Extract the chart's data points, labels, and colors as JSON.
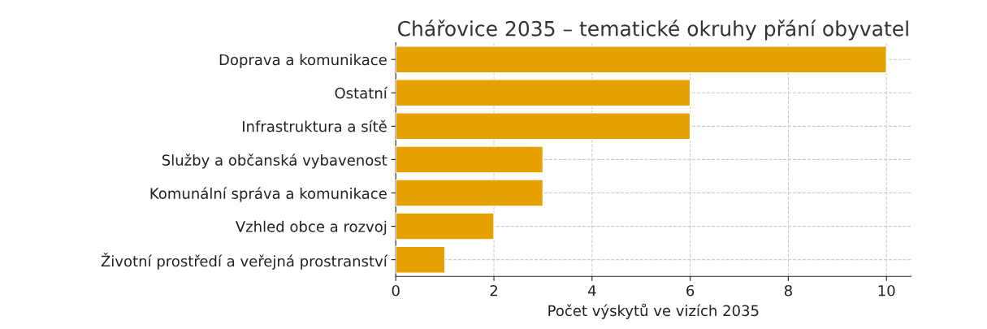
{
  "chart_data": {
    "type": "bar",
    "orientation": "horizontal",
    "title": "Chářovice 2035 – tematické okruhy přání obyvatel",
    "xlabel": "Počet výskytů ve vizích 2035",
    "categories": [
      "Doprava a komunikace",
      "Ostatní",
      "Infrastruktura a sítě",
      "Služby a občanská vybavenost",
      "Komunální správa a komunikace",
      "Vzhled obce a rozvoj",
      "Životní prostředí a veřejná prostranství"
    ],
    "values": [
      10,
      6,
      6,
      3,
      3,
      2,
      1
    ],
    "color": "#e6a000",
    "xlim": [
      0,
      10.5
    ],
    "xticks": [
      0,
      2,
      4,
      6,
      8,
      10
    ],
    "grid": true
  }
}
